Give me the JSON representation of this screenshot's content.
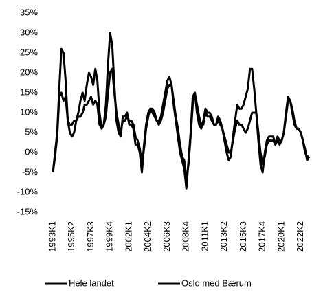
{
  "chart_data": {
    "type": "line",
    "categories": [
      "1993K1",
      null,
      null,
      null,
      null,
      null,
      null,
      null,
      null,
      "1995K2",
      null,
      null,
      null,
      null,
      null,
      null,
      null,
      null,
      "1997K3",
      null,
      null,
      null,
      null,
      null,
      null,
      null,
      null,
      "1999K4",
      null,
      null,
      null,
      null,
      null,
      null,
      null,
      null,
      "2002K1",
      null,
      null,
      null,
      null,
      null,
      null,
      null,
      null,
      "2004K2",
      null,
      null,
      null,
      null,
      null,
      null,
      null,
      null,
      "2006K3",
      null,
      null,
      null,
      null,
      null,
      null,
      null,
      null,
      "2008K4",
      null,
      null,
      null,
      null,
      null,
      null,
      null,
      null,
      "2011K1",
      null,
      null,
      null,
      null,
      null,
      null,
      null,
      null,
      "2013K2",
      null,
      null,
      null,
      null,
      null,
      null,
      null,
      null,
      "2015K3",
      null,
      null,
      null,
      null,
      null,
      null,
      null,
      null,
      "2017K4",
      null,
      null,
      null,
      null,
      null,
      null,
      null,
      null,
      "2020K1",
      null,
      null,
      null,
      null,
      null,
      null,
      null,
      null,
      "2022K2",
      null,
      null,
      null,
      null
    ],
    "series": [
      {
        "name": "Hele landet",
        "color": "#000000",
        "values": [
          -5,
          -1,
          4,
          14,
          15,
          13,
          14,
          8,
          7,
          7,
          8,
          8,
          9,
          9,
          10,
          12,
          12,
          13,
          14,
          12,
          13,
          12,
          7,
          6,
          7,
          9,
          15,
          20,
          21,
          15,
          10,
          7,
          5,
          8,
          8,
          9,
          8,
          8,
          7,
          4,
          3,
          1,
          -3,
          1,
          6,
          9,
          11,
          11,
          10,
          8,
          7,
          8,
          10,
          13,
          16,
          17,
          17,
          13,
          9,
          6,
          2,
          -1,
          -2,
          -7,
          -3,
          4,
          12,
          15,
          12,
          9,
          7,
          7,
          10,
          9,
          9,
          8,
          7,
          7,
          8,
          7,
          6,
          4,
          2,
          0,
          0,
          3,
          6,
          8,
          7,
          7,
          6,
          5,
          6,
          8,
          10,
          10,
          10,
          5,
          0,
          -3,
          -1,
          2,
          3,
          3,
          3,
          2,
          3,
          2,
          3,
          5,
          9,
          13,
          13,
          10,
          7,
          6,
          6,
          5,
          3,
          0,
          -1,
          -1
        ]
      },
      {
        "name": "Oslo med Bærum",
        "color": "#000000",
        "values": [
          -5,
          0,
          5,
          16,
          26,
          25,
          18,
          8,
          5,
          4,
          5,
          8,
          10,
          13,
          15,
          13,
          17,
          20,
          19,
          17,
          21,
          18,
          10,
          6,
          7,
          12,
          22,
          30,
          27,
          17,
          8,
          5,
          4,
          9,
          9,
          10,
          7,
          7,
          6,
          2,
          2,
          0,
          -5,
          2,
          7,
          10,
          11,
          10,
          9,
          8,
          8,
          9,
          12,
          15,
          18,
          19,
          17,
          12,
          8,
          4,
          0,
          -2,
          -4,
          -9,
          -2,
          5,
          14,
          15,
          10,
          7,
          6,
          8,
          11,
          10,
          10,
          9,
          7,
          7,
          9,
          8,
          6,
          3,
          0,
          -2,
          -1,
          4,
          8,
          12,
          11,
          11,
          12,
          14,
          16,
          21,
          21,
          16,
          10,
          3,
          -3,
          -5,
          0,
          3,
          4,
          4,
          4,
          2,
          4,
          3,
          3,
          5,
          10,
          14,
          13,
          11,
          8,
          6,
          6,
          5,
          3,
          1,
          -2,
          -1
        ]
      }
    ],
    "ylim": [
      -15,
      35
    ],
    "yticks": [
      {
        "value": -15,
        "label": "-15%"
      },
      {
        "value": -10,
        "label": "-10%"
      },
      {
        "value": -5,
        "label": "-5%"
      },
      {
        "value": 0,
        "label": "0%"
      },
      {
        "value": 5,
        "label": "5%"
      },
      {
        "value": 10,
        "label": "10%"
      },
      {
        "value": 15,
        "label": "15%"
      },
      {
        "value": 20,
        "label": "20%"
      },
      {
        "value": 25,
        "label": "25%"
      },
      {
        "value": 30,
        "label": "30%"
      },
      {
        "value": 35,
        "label": "35%"
      }
    ],
    "grid": false,
    "legend": "bottom"
  }
}
